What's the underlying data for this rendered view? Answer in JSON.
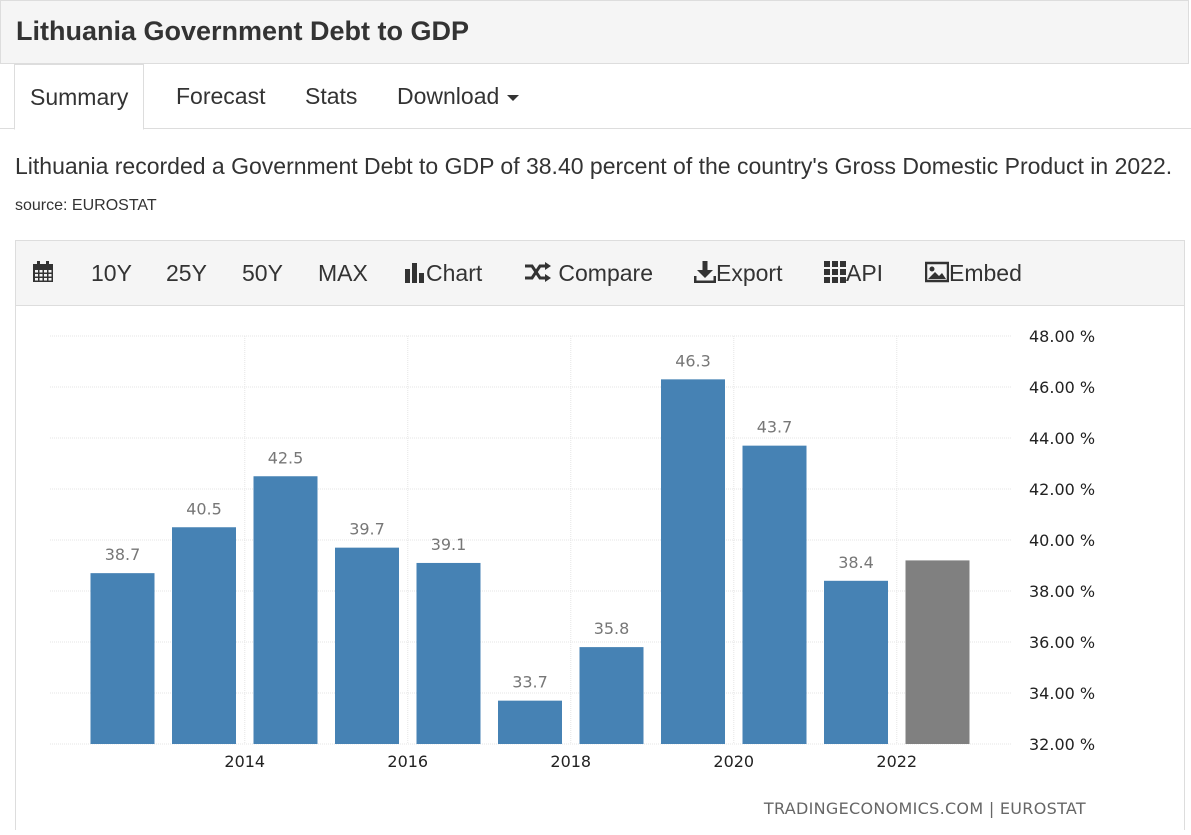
{
  "header": {
    "title": "Lithuania Government Debt to GDP"
  },
  "tabs": [
    {
      "label": "Summary"
    },
    {
      "label": "Forecast"
    },
    {
      "label": "Stats"
    },
    {
      "label": "Download"
    }
  ],
  "summary": {
    "text": "Lithuania recorded a Government Debt to GDP of 38.40 percent of the country's Gross Domestic Product in 2022.",
    "source": "source: EUROSTAT"
  },
  "toolbar": {
    "calendar_icon": "calendar-icon",
    "ranges": [
      "10Y",
      "25Y",
      "50Y",
      "MAX"
    ],
    "chart_label": "Chart",
    "compare_label": "Compare",
    "export_label": "Export",
    "api_label": "API",
    "embed_label": "Embed"
  },
  "chart_data": {
    "type": "bar",
    "x": [
      2013,
      2014,
      2015,
      2016,
      2017,
      2018,
      2019,
      2020,
      2021,
      2022,
      2023
    ],
    "values": [
      38.7,
      40.5,
      42.5,
      39.7,
      39.1,
      33.7,
      35.8,
      46.3,
      43.7,
      38.4,
      39.2
    ],
    "data_labels": [
      "38.7",
      "40.5",
      "42.5",
      "39.7",
      "39.1",
      "33.7",
      "35.8",
      "46.3",
      "43.7",
      "38.4",
      ""
    ],
    "bar_colors": [
      "#4682b4",
      "#4682b4",
      "#4682b4",
      "#4682b4",
      "#4682b4",
      "#4682b4",
      "#4682b4",
      "#4682b4",
      "#4682b4",
      "#4682b4",
      "#808080"
    ],
    "x_tick_labels": [
      "2014",
      "2016",
      "2018",
      "2020",
      "2022"
    ],
    "x_tick_values": [
      2014,
      2016,
      2018,
      2020,
      2022
    ],
    "y_tick_labels": [
      "48.00 %",
      "46.00 %",
      "44.00 %",
      "42.00 %",
      "40.00 %",
      "38.00 %",
      "36.00 %",
      "34.00 %",
      "32.00 %"
    ],
    "y_tick_values": [
      48,
      46,
      44,
      42,
      40,
      38,
      36,
      34,
      32
    ],
    "ylim": [
      32,
      48
    ],
    "y_axis_position": "right",
    "grid": true,
    "credit": "TRADINGECONOMICS.COM | EUROSTAT"
  }
}
